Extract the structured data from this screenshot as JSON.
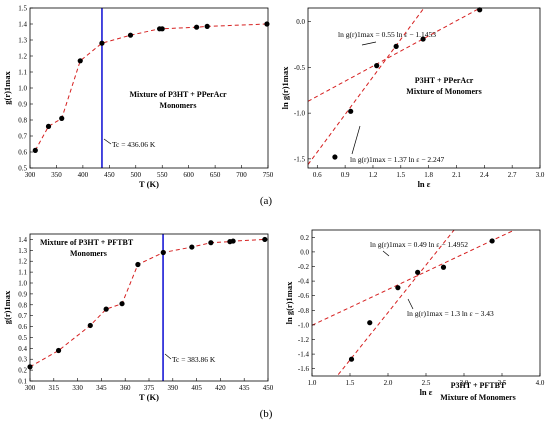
{
  "panels": {
    "a": "(a)",
    "b": "(b)"
  },
  "chart_data": [
    {
      "id": "a-left",
      "type": "line",
      "xlabel": "T (K)",
      "ylabel": "g(r)1max",
      "xlim": [
        300,
        750
      ],
      "ylim": [
        0.5,
        1.5
      ],
      "xticks": [
        300,
        350,
        400,
        450,
        500,
        550,
        600,
        650,
        700,
        750
      ],
      "yticks": [
        0.5,
        0.6,
        0.7,
        0.8,
        0.9,
        1.0,
        1.1,
        1.2,
        1.3,
        1.4,
        1.5
      ],
      "x": [
        310,
        335,
        360,
        395,
        436,
        490,
        545,
        550,
        615,
        635,
        748
      ],
      "y": [
        0.61,
        0.76,
        0.81,
        1.17,
        1.28,
        1.33,
        1.37,
        1.37,
        1.38,
        1.385,
        1.4
      ],
      "vline": 436.06,
      "annotations": {
        "title_line1": "Mixture of P3HT + PPerAcr",
        "title_line2": "Monomers",
        "tc_text": "Tc = 436.06 K"
      }
    },
    {
      "id": "a-right",
      "type": "scatter",
      "xlabel": "ln ε",
      "ylabel": "ln g(r)1max",
      "xlim": [
        0.5,
        3.0
      ],
      "ylim": [
        -1.6,
        0.15
      ],
      "xticks": [
        0.6,
        0.9,
        1.2,
        1.5,
        1.8,
        2.1,
        2.4,
        2.7,
        3.0
      ],
      "yticks": [
        0.0,
        -0.5,
        -1.0,
        -1.5
      ],
      "x": [
        0.79,
        0.96,
        1.24,
        1.45,
        1.74,
        2.35
      ],
      "y": [
        -1.48,
        -0.98,
        -0.48,
        -0.27,
        -0.19,
        0.13
      ],
      "fit_lines": [
        {
          "slope": 0.55,
          "intercept": -1.1453
        },
        {
          "slope": 1.37,
          "intercept": -2.247
        }
      ],
      "annotations": {
        "fit1_label": "ln g(r)1max = 0.55 ln ε − 1.1453",
        "fit2_label": "ln g(r)1max = 1.37 ln ε − 2.247",
        "title_line1": "P3HT + PPerAcr",
        "title_line2": "Mixture of Monomers"
      }
    },
    {
      "id": "b-left",
      "type": "line",
      "xlabel": "T (K)",
      "ylabel": "g(r)1max",
      "xlim": [
        300,
        450
      ],
      "ylim": [
        0.1,
        1.45
      ],
      "xticks": [
        300,
        315,
        330,
        345,
        360,
        375,
        390,
        405,
        420,
        435,
        450
      ],
      "yticks": [
        0.1,
        0.2,
        0.3,
        0.4,
        0.5,
        0.6,
        0.7,
        0.8,
        0.9,
        1.0,
        1.1,
        1.2,
        1.3,
        1.4
      ],
      "x": [
        300,
        318,
        338,
        348,
        358,
        368,
        384,
        402,
        414,
        426,
        428,
        448
      ],
      "y": [
        0.23,
        0.38,
        0.61,
        0.76,
        0.81,
        1.17,
        1.28,
        1.33,
        1.37,
        1.38,
        1.385,
        1.4
      ],
      "vline": 383.86,
      "annotations": {
        "title_line1": "Mixture of P3HT + PFTBT",
        "title_line2": "Monomers",
        "tc_text": "Tc = 383.86 K"
      }
    },
    {
      "id": "b-right",
      "type": "scatter",
      "xlabel": "ln ε",
      "ylabel": "ln g(r)1max",
      "xlim": [
        1.0,
        4.0
      ],
      "ylim": [
        -1.7,
        0.3
      ],
      "xticks": [
        1.0,
        1.5,
        2.0,
        2.5,
        3.0,
        3.5,
        4.0
      ],
      "yticks": [
        0.2,
        0.0,
        -0.2,
        -0.4,
        -0.6,
        -0.8,
        -1.0,
        -1.2,
        -1.4,
        -1.6
      ],
      "x": [
        1.52,
        1.76,
        2.13,
        2.39,
        2.73,
        3.37
      ],
      "y": [
        -1.47,
        -0.97,
        -0.49,
        -0.28,
        -0.21,
        0.15
      ],
      "fit_lines": [
        {
          "slope": 0.49,
          "intercept": -1.4952
        },
        {
          "slope": 1.3,
          "intercept": -3.43
        }
      ],
      "annotations": {
        "fit1_label": "ln g(r)1max = 0.49 ln ε − 1.4952",
        "fit2_label": "ln g(r)1max = 1.3 ln ε − 3.43",
        "title_line1": "P3HT + PFTBT",
        "title_line2": "Mixture of Monomers"
      }
    }
  ]
}
